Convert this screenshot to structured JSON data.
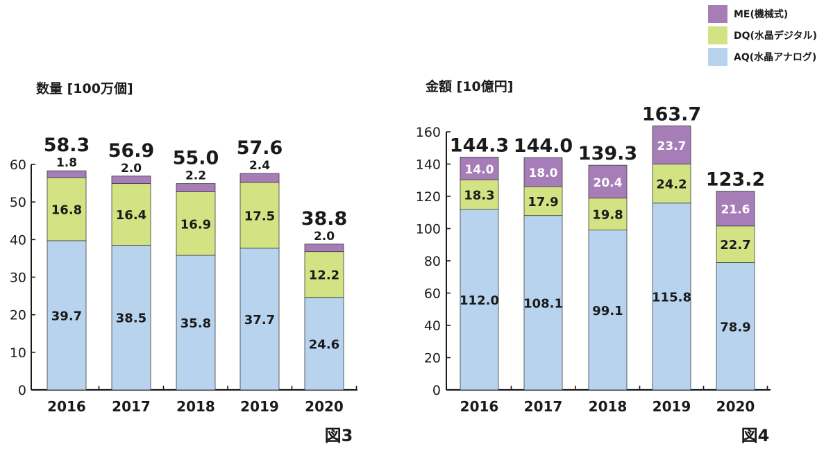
{
  "legend": [
    {
      "key": "me",
      "label": "ME(機械式)",
      "color": "#a77db7"
    },
    {
      "key": "dq",
      "label": "DQ(水晶デジタル)",
      "color": "#d3e384"
    },
    {
      "key": "aq",
      "label": "AQ(水晶アナログ)",
      "color": "#b8d3ee"
    }
  ],
  "chart_data": [
    {
      "type": "bar",
      "stacked": true,
      "figure_label": "図3",
      "ylabel": "数量 [100万個]",
      "categories": [
        "2016",
        "2017",
        "2018",
        "2019",
        "2020"
      ],
      "ylim": [
        0,
        60
      ],
      "yticks": [
        0,
        10,
        20,
        30,
        40,
        50,
        60
      ],
      "series": [
        {
          "key": "aq",
          "values": [
            39.7,
            38.5,
            35.8,
            37.7,
            24.6
          ]
        },
        {
          "key": "dq",
          "values": [
            16.8,
            16.4,
            16.9,
            17.5,
            12.2
          ]
        },
        {
          "key": "me",
          "values": [
            1.8,
            2.0,
            2.2,
            2.4,
            2.0
          ]
        }
      ],
      "totals": [
        58.3,
        56.9,
        55.0,
        57.6,
        38.8
      ]
    },
    {
      "type": "bar",
      "stacked": true,
      "figure_label": "図4",
      "ylabel": "金額 [10億円]",
      "categories": [
        "2016",
        "2017",
        "2018",
        "2019",
        "2020"
      ],
      "ylim": [
        0,
        160
      ],
      "yticks": [
        0,
        20,
        40,
        60,
        80,
        100,
        120,
        140,
        160
      ],
      "series": [
        {
          "key": "aq",
          "values": [
            112.0,
            108.1,
            99.1,
            115.8,
            78.9
          ]
        },
        {
          "key": "dq",
          "values": [
            18.3,
            17.9,
            19.8,
            24.2,
            22.7
          ]
        },
        {
          "key": "me",
          "values": [
            14.0,
            18.0,
            20.4,
            23.7,
            21.6
          ]
        }
      ],
      "totals": [
        144.3,
        144.0,
        139.3,
        163.7,
        123.2
      ]
    }
  ]
}
